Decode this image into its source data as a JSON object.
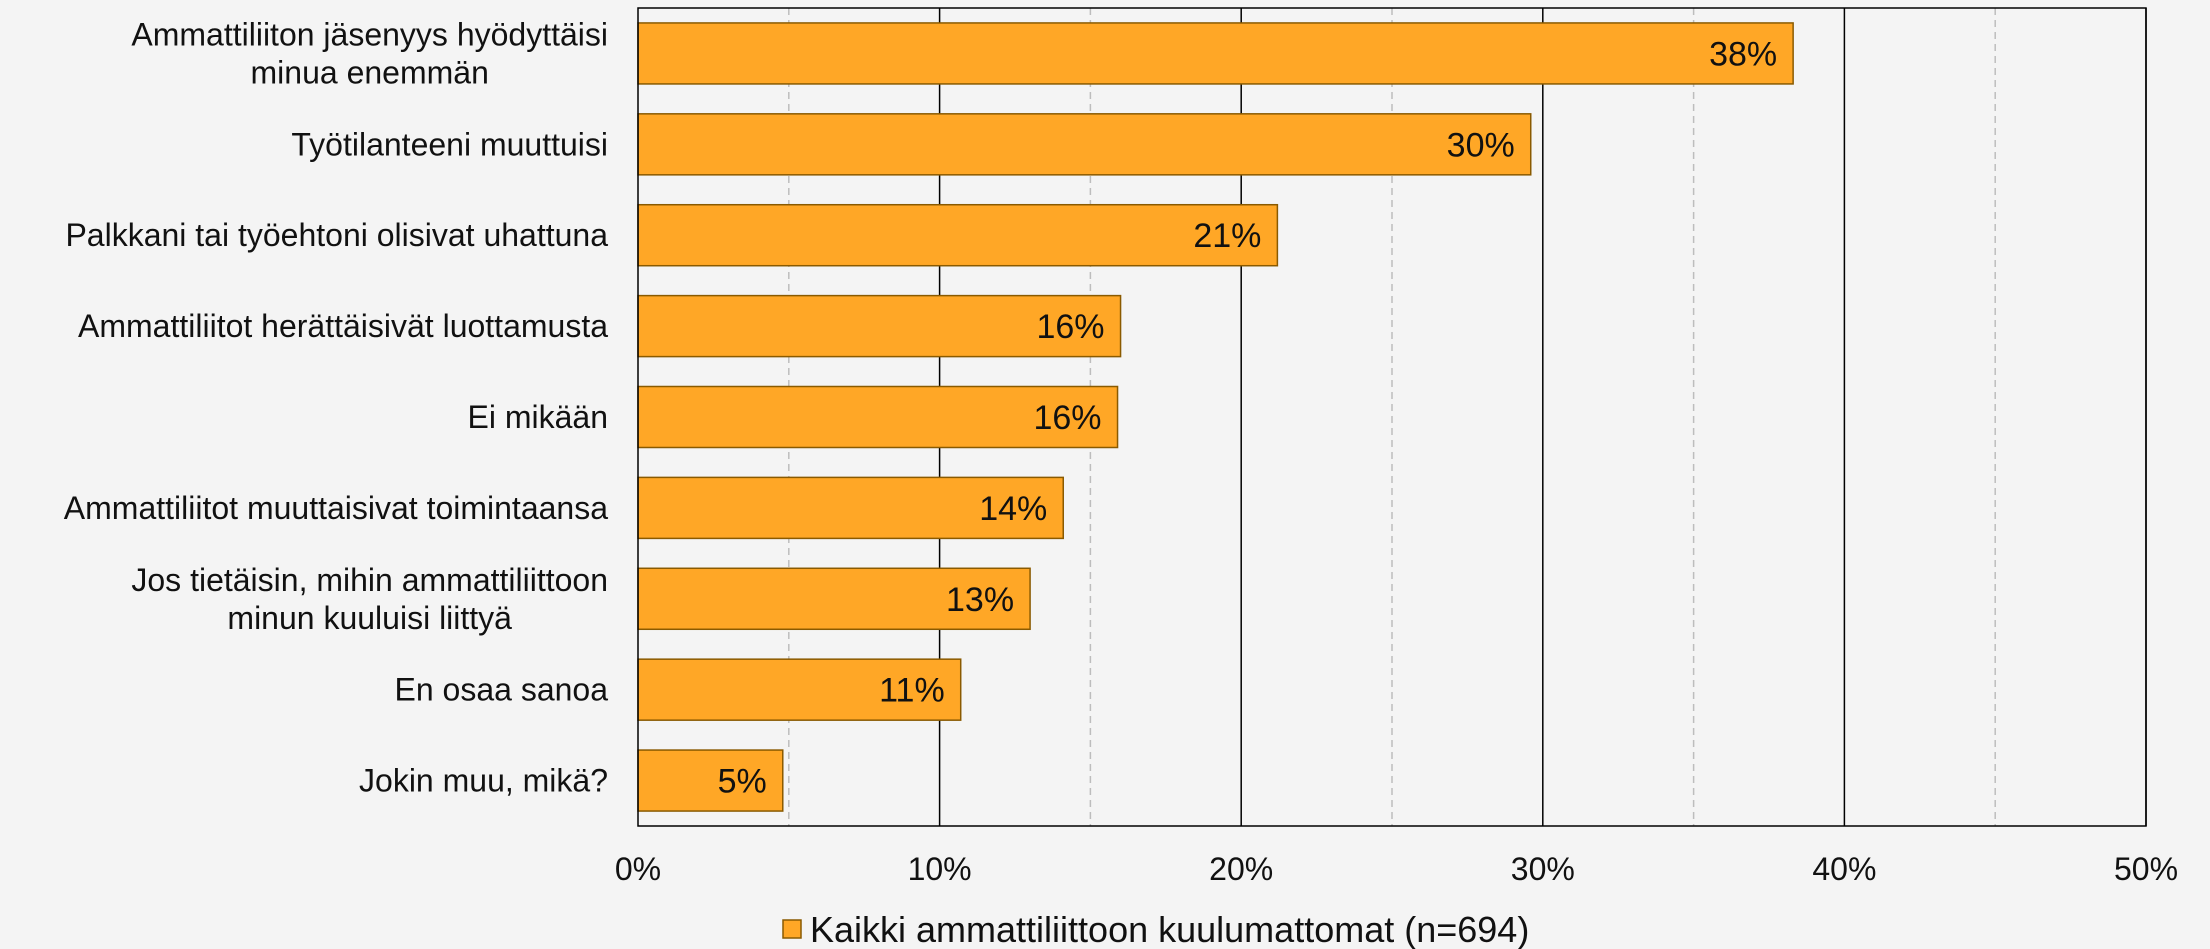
{
  "chart_data": {
    "type": "bar",
    "orientation": "horizontal",
    "categories": [
      [
        "Ammattiliiton jäsenyys hyödyttäisi",
        "minua enemmän"
      ],
      [
        "Työtilanteeni muuttuisi"
      ],
      [
        "Palkkani tai työehtoni olisivat uhattuna"
      ],
      [
        "Ammattiliitot herättäisivät luottamusta"
      ],
      [
        "Ei mikään"
      ],
      [
        "Ammattiliitot muuttaisivat toimintaansa"
      ],
      [
        "Jos tietäisin, mihin ammattiliittoon",
        "minun kuuluisi liittyä"
      ],
      [
        "En osaa sanoa"
      ],
      [
        "Jokin muu, mikä?"
      ]
    ],
    "series": [
      {
        "name": "Kaikki ammattiliittoon kuulumattomat (n=694)",
        "color": "#FFA726",
        "values": [
          38.3,
          29.6,
          21.2,
          16.0,
          15.9,
          14.1,
          13.0,
          10.7,
          4.8
        ],
        "data_labels": [
          "38%",
          "30%",
          "21%",
          "16%",
          "16%",
          "14%",
          "13%",
          "11%",
          "5%"
        ]
      }
    ],
    "xlim": [
      0,
      50
    ],
    "xticks": [
      0,
      10,
      20,
      30,
      40,
      50
    ],
    "xtick_labels": [
      "0%",
      "10%",
      "20%",
      "30%",
      "40%",
      "50%"
    ],
    "gridlines_major": [
      10,
      20,
      30,
      40,
      50
    ],
    "gridlines_minor_dashed": [
      5,
      15,
      25,
      35,
      45
    ],
    "grid": true,
    "legend_position": "bottom",
    "title": "",
    "xlabel": "",
    "ylabel": ""
  },
  "colors": {
    "background": "#f4f4f4",
    "bar_fill": "#FFA726",
    "bar_stroke": "#8a5a00",
    "axis": "#000000",
    "minor_grid": "#bdbdbd"
  }
}
